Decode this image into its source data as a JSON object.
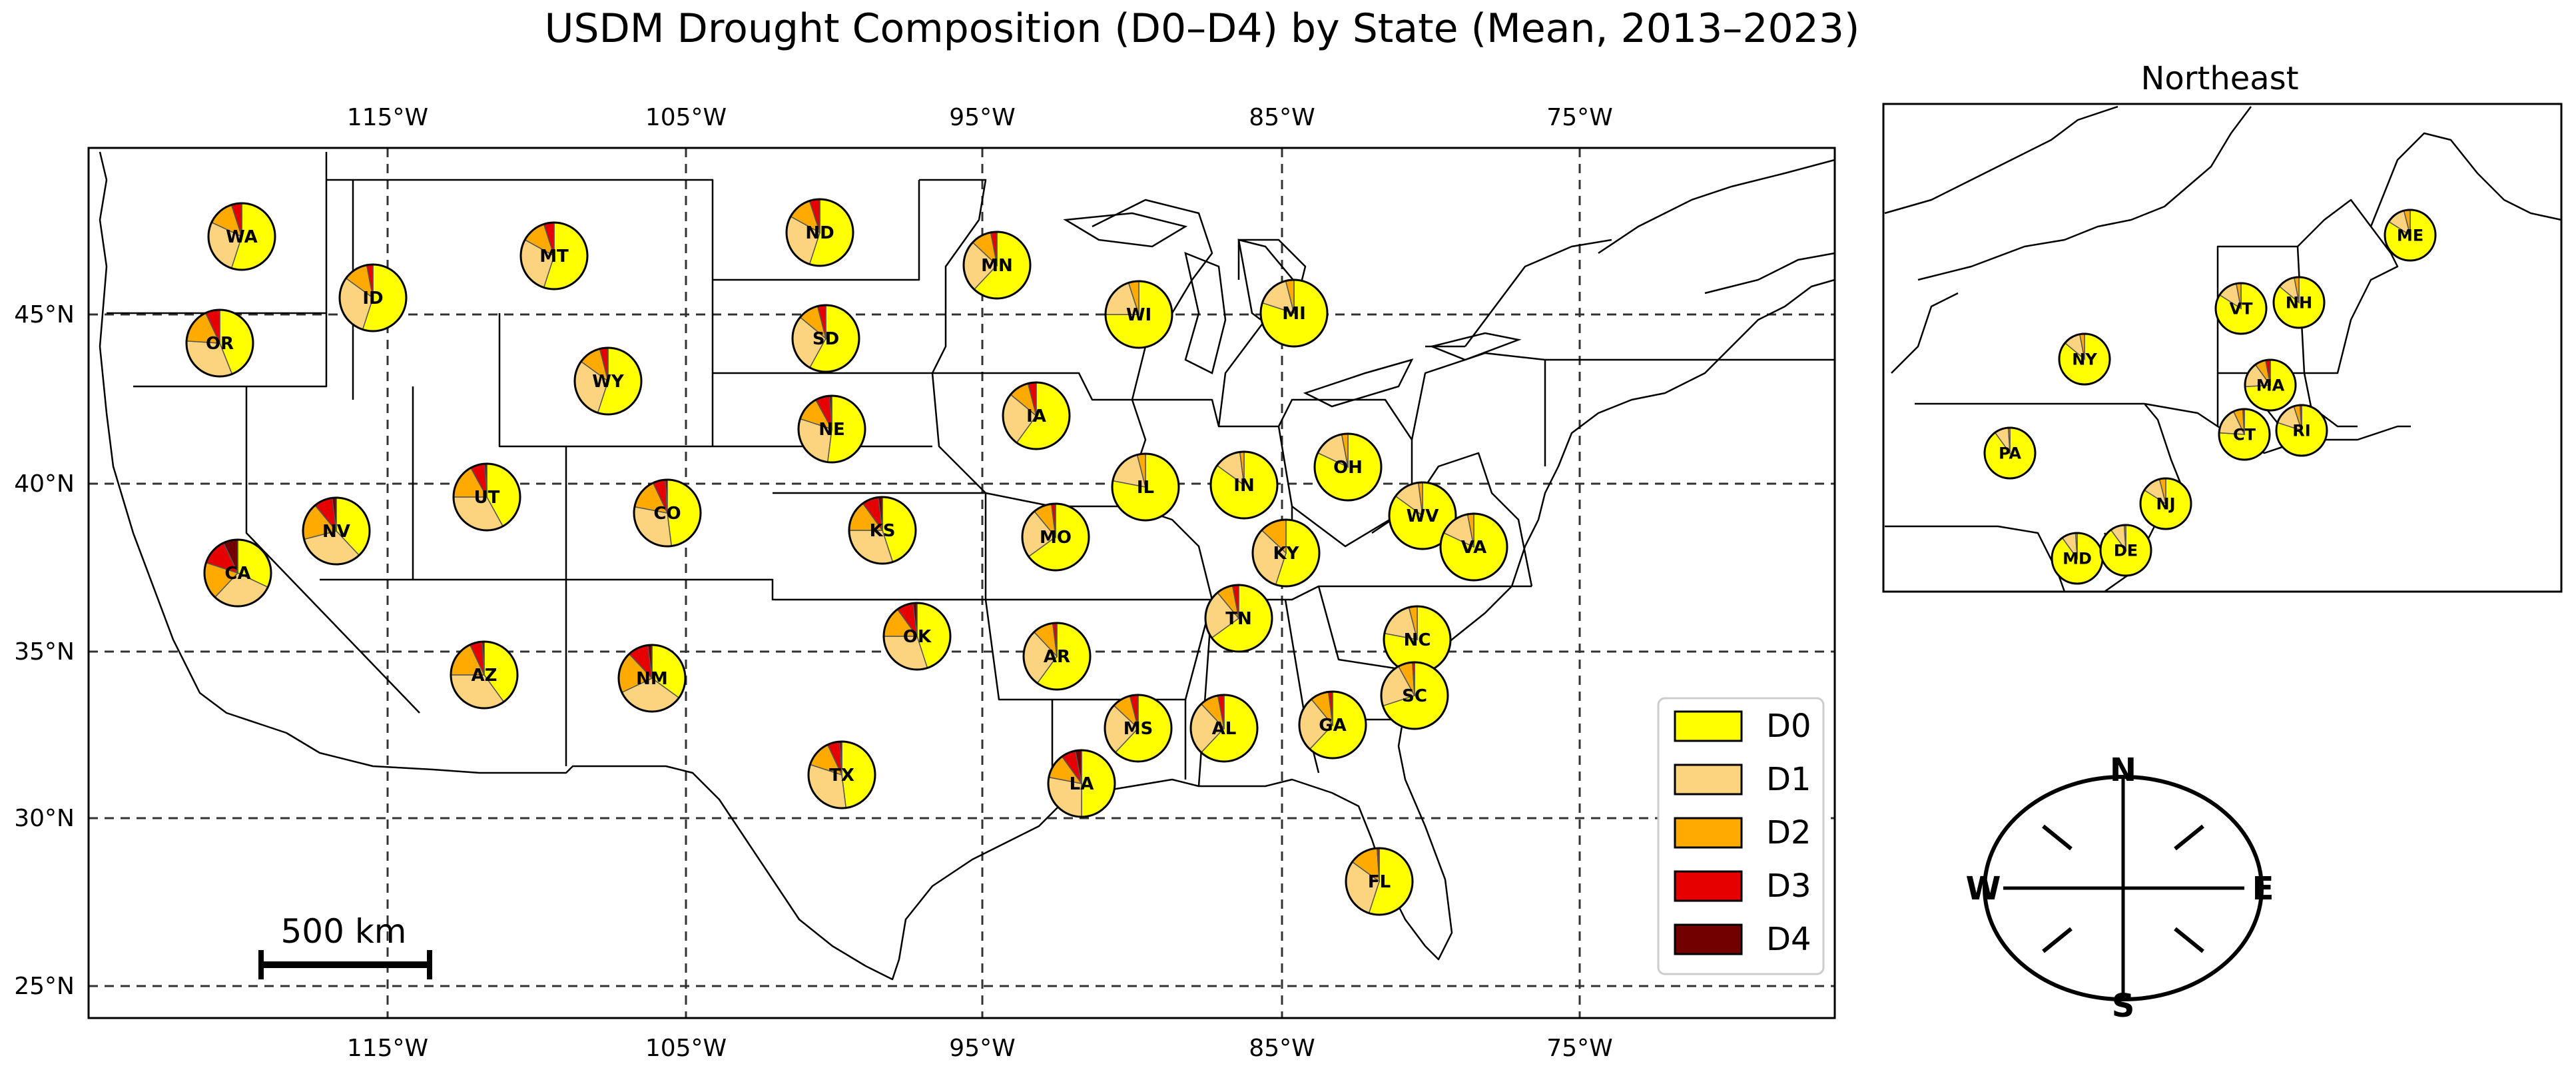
{
  "title": "USDM Drought Composition (D0–D4) by State (Mean, 2013–2023)",
  "axes": {
    "lon_ticks": [
      "115°W",
      "105°W",
      "95°W",
      "85°W",
      "75°W"
    ],
    "lat_ticks": [
      "45°N",
      "40°N",
      "35°N",
      "30°N",
      "25°N"
    ]
  },
  "legend": {
    "items": [
      {
        "label": "D0",
        "color": "#ffff00"
      },
      {
        "label": "D1",
        "color": "#fcd37f"
      },
      {
        "label": "D2",
        "color": "#ffaa00"
      },
      {
        "label": "D3",
        "color": "#e60000"
      },
      {
        "label": "D4",
        "color": "#730000"
      }
    ]
  },
  "scale_bar": {
    "label": "500 km"
  },
  "inset": {
    "title": "Northeast"
  },
  "compass": {
    "n": "N",
    "s": "S",
    "e": "E",
    "w": "W"
  },
  "chart_data": {
    "type": "pie-map",
    "categories": [
      "D0",
      "D1",
      "D2",
      "D3",
      "D4"
    ],
    "main_states": [
      {
        "label": "WA",
        "values": [
          55,
          27,
          13,
          5,
          0
        ]
      },
      {
        "label": "OR",
        "values": [
          44,
          32,
          17,
          7,
          0
        ]
      },
      {
        "label": "CA",
        "values": [
          32,
          30,
          18,
          13,
          7
        ]
      },
      {
        "label": "ID",
        "values": [
          55,
          30,
          12,
          3,
          0
        ]
      },
      {
        "label": "NV",
        "values": [
          38,
          33,
          18,
          9,
          2
        ]
      },
      {
        "label": "MT",
        "values": [
          55,
          28,
          12,
          5,
          0
        ]
      },
      {
        "label": "WY",
        "values": [
          55,
          30,
          11,
          4,
          0
        ]
      },
      {
        "label": "UT",
        "values": [
          42,
          33,
          17,
          7,
          1
        ]
      },
      {
        "label": "CO",
        "values": [
          48,
          30,
          15,
          6,
          1
        ]
      },
      {
        "label": "AZ",
        "values": [
          40,
          35,
          18,
          6,
          1
        ]
      },
      {
        "label": "NM",
        "values": [
          35,
          33,
          20,
          10,
          2
        ]
      },
      {
        "label": "ND",
        "values": [
          55,
          28,
          12,
          5,
          0
        ]
      },
      {
        "label": "SD",
        "values": [
          58,
          28,
          10,
          4,
          0
        ]
      },
      {
        "label": "NE",
        "values": [
          52,
          28,
          12,
          7,
          1
        ]
      },
      {
        "label": "KS",
        "values": [
          45,
          30,
          15,
          8,
          2
        ]
      },
      {
        "label": "OK",
        "values": [
          45,
          30,
          15,
          8,
          2
        ]
      },
      {
        "label": "TX",
        "values": [
          48,
          32,
          13,
          6,
          1
        ]
      },
      {
        "label": "MN",
        "values": [
          62,
          25,
          10,
          3,
          0
        ]
      },
      {
        "label": "IA",
        "values": [
          60,
          26,
          10,
          4,
          0
        ]
      },
      {
        "label": "MO",
        "values": [
          65,
          24,
          9,
          2,
          0
        ]
      },
      {
        "label": "AR",
        "values": [
          60,
          28,
          10,
          2,
          0
        ]
      },
      {
        "label": "LA",
        "values": [
          50,
          28,
          12,
          7,
          3
        ]
      },
      {
        "label": "WI",
        "values": [
          75,
          20,
          5,
          0,
          0
        ]
      },
      {
        "label": "IL",
        "values": [
          78,
          18,
          4,
          0,
          0
        ]
      },
      {
        "label": "MS",
        "values": [
          62,
          25,
          9,
          4,
          0
        ]
      },
      {
        "label": "MI",
        "values": [
          80,
          16,
          4,
          0,
          0
        ]
      },
      {
        "label": "IN",
        "values": [
          85,
          13,
          2,
          0,
          0
        ]
      },
      {
        "label": "KY",
        "values": [
          55,
          32,
          13,
          0,
          0
        ]
      },
      {
        "label": "TN",
        "values": [
          65,
          24,
          8,
          3,
          0
        ]
      },
      {
        "label": "AL",
        "values": [
          62,
          26,
          9,
          3,
          0
        ]
      },
      {
        "label": "GA",
        "values": [
          62,
          27,
          9,
          2,
          0
        ]
      },
      {
        "label": "FL",
        "values": [
          55,
          30,
          14,
          1,
          0
        ]
      },
      {
        "label": "OH",
        "values": [
          82,
          15,
          3,
          0,
          0
        ]
      },
      {
        "label": "WV",
        "values": [
          85,
          13,
          2,
          0,
          0
        ]
      },
      {
        "label": "VA",
        "values": [
          82,
          15,
          3,
          0,
          0
        ]
      },
      {
        "label": "NC",
        "values": [
          78,
          18,
          4,
          0,
          0
        ]
      },
      {
        "label": "SC",
        "values": [
          70,
          22,
          7,
          1,
          0
        ]
      }
    ],
    "inset_states": [
      {
        "label": "ME",
        "values": [
          84,
          12,
          4,
          0,
          0
        ]
      },
      {
        "label": "VT",
        "values": [
          84,
          13,
          3,
          0,
          0
        ]
      },
      {
        "label": "NH",
        "values": [
          86,
          11,
          3,
          0,
          0
        ]
      },
      {
        "label": "NY",
        "values": [
          86,
          11,
          3,
          0,
          0
        ]
      },
      {
        "label": "MA",
        "values": [
          74,
          16,
          7,
          3,
          0
        ]
      },
      {
        "label": "CT",
        "values": [
          76,
          17,
          6,
          1,
          0
        ]
      },
      {
        "label": "RI",
        "values": [
          80,
          15,
          4,
          1,
          0
        ]
      },
      {
        "label": "PA",
        "values": [
          90,
          9,
          1,
          0,
          0
        ]
      },
      {
        "label": "NJ",
        "values": [
          84,
          12,
          4,
          0,
          0
        ]
      },
      {
        "label": "MD",
        "values": [
          90,
          9,
          1,
          0,
          0
        ]
      },
      {
        "label": "DE",
        "values": [
          90,
          9,
          1,
          0,
          0
        ]
      }
    ]
  }
}
